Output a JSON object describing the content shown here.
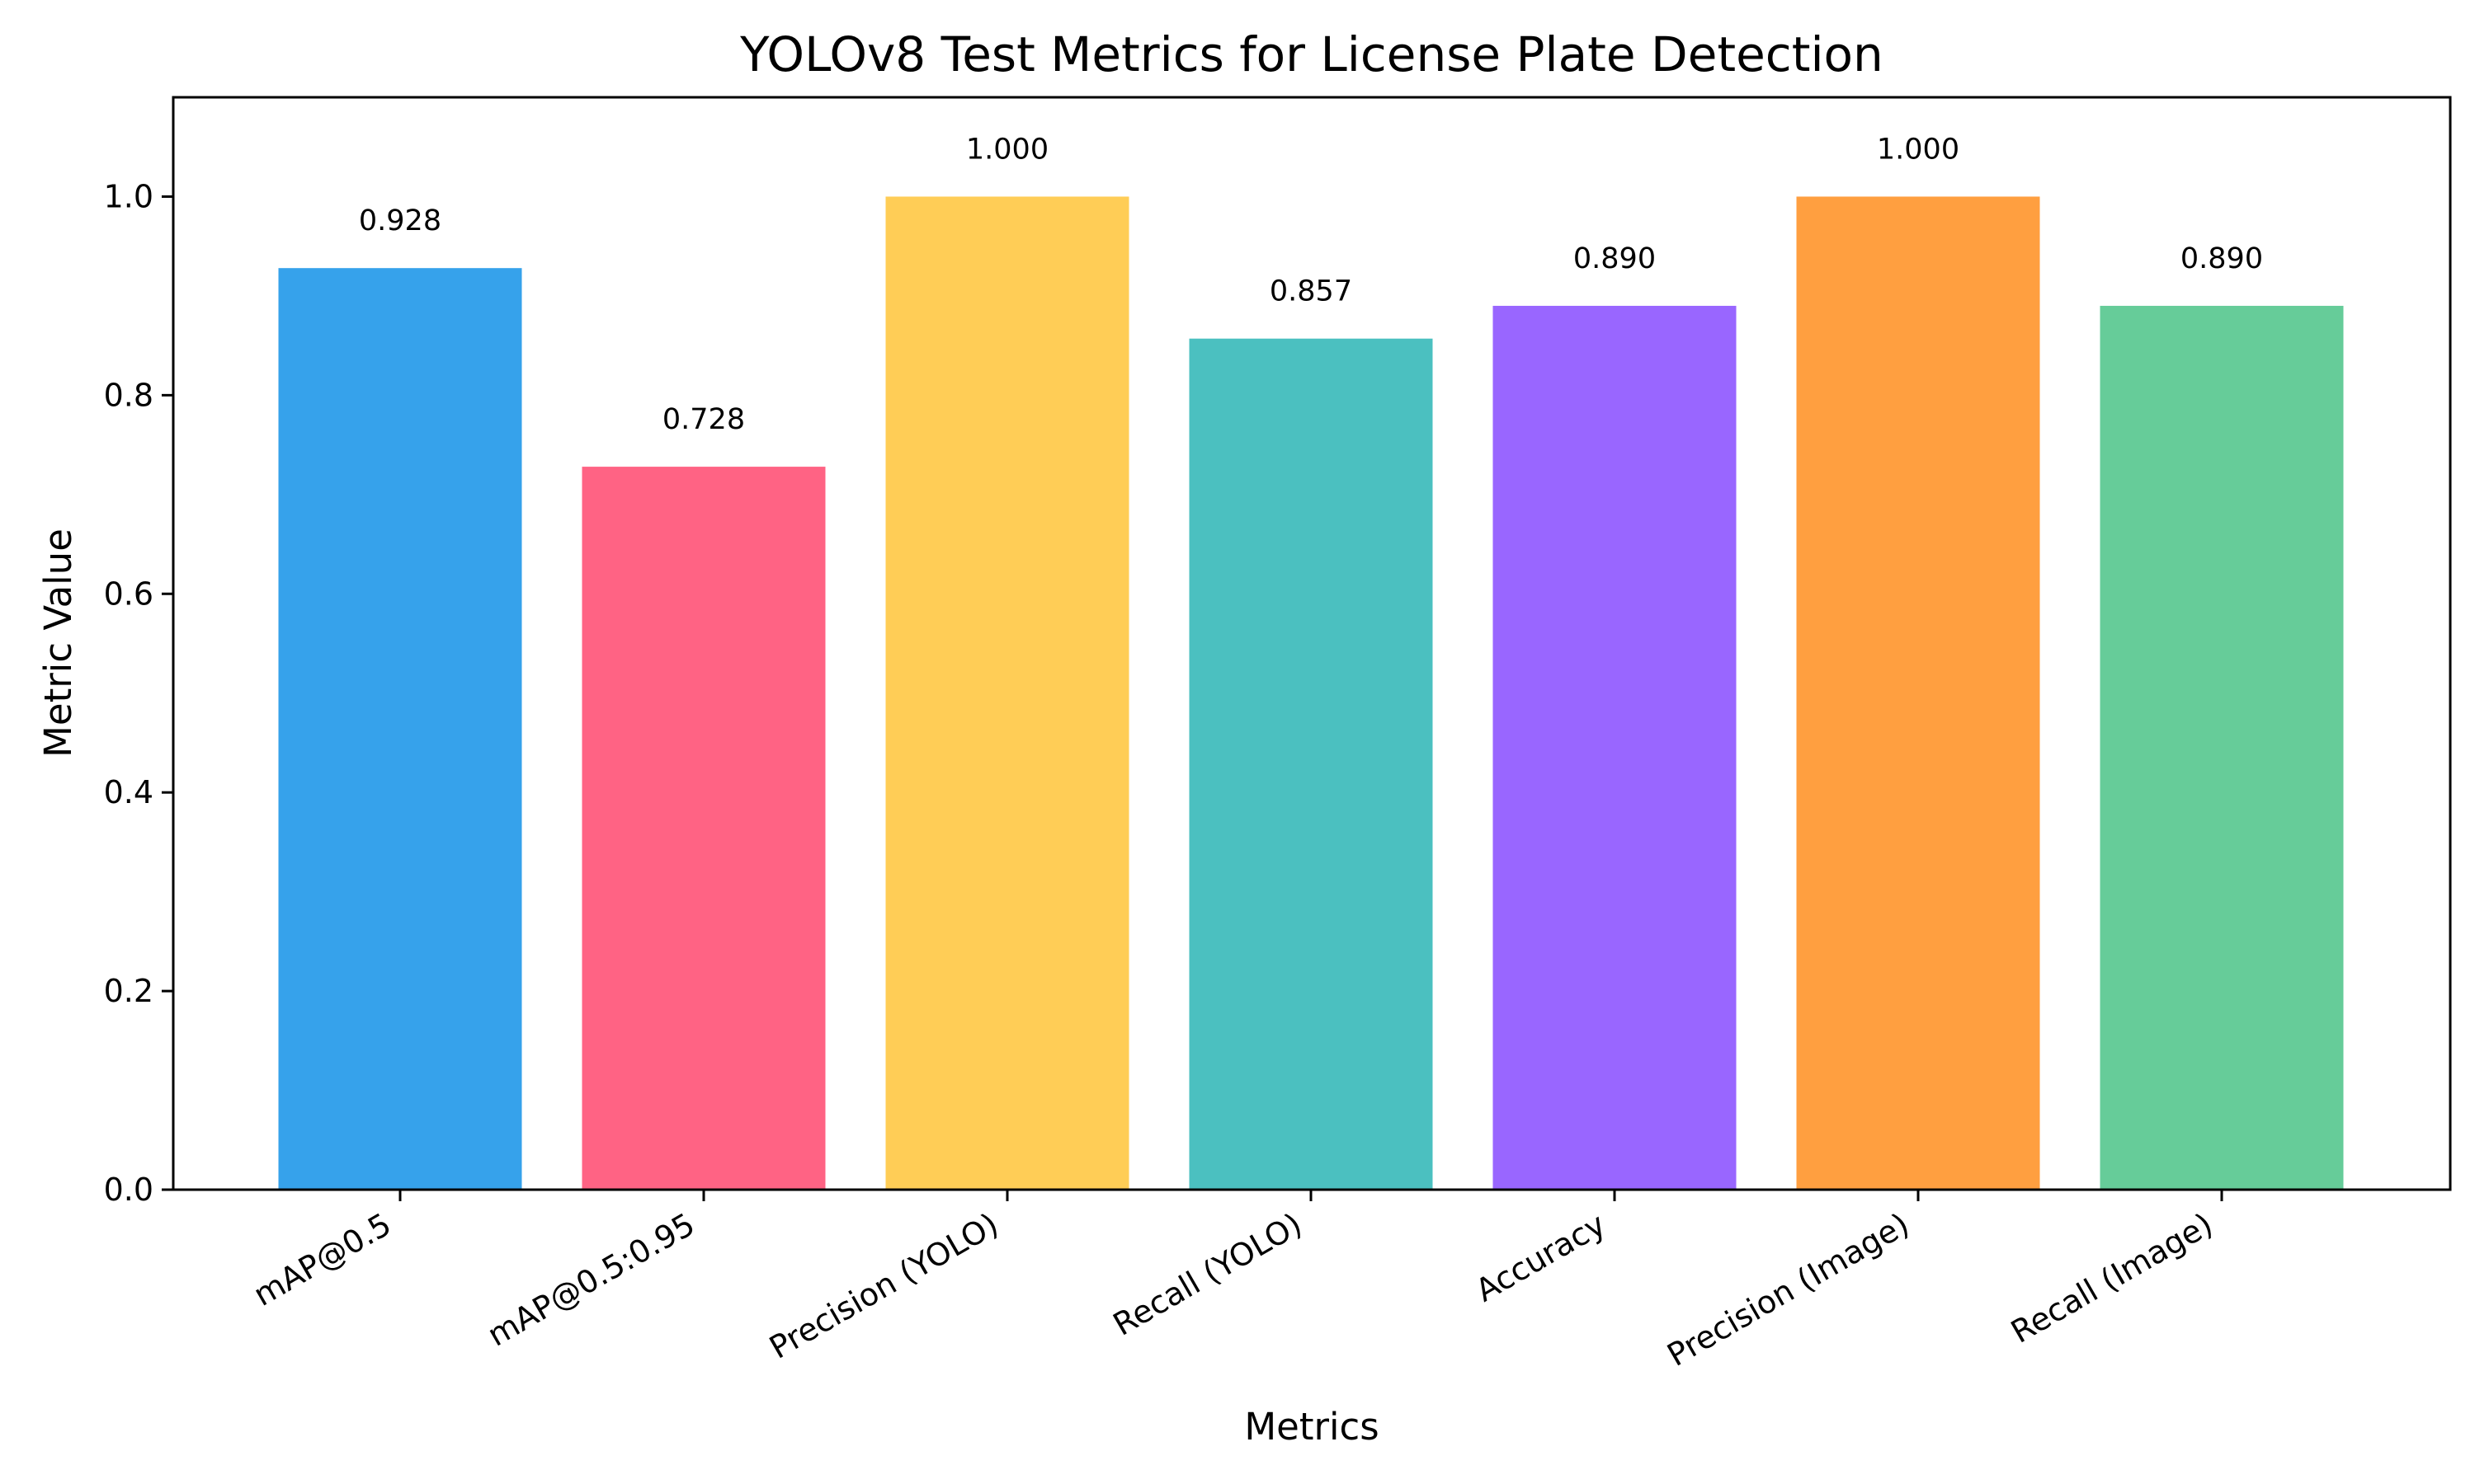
{
  "chart_data": {
    "type": "bar",
    "title": "YOLOv8 Test Metrics for License Plate Detection",
    "xlabel": "Metrics",
    "ylabel": "Metric Value",
    "categories": [
      "mAP@0.5",
      "mAP@0.5:0.95",
      "Precision (YOLO)",
      "Recall (YOLO)",
      "Accuracy",
      "Precision (Image)",
      "Recall (Image)"
    ],
    "values": [
      0.928,
      0.728,
      1.0,
      0.857,
      0.89,
      1.0,
      0.89
    ],
    "value_labels": [
      "0.928",
      "0.728",
      "1.000",
      "0.857",
      "0.890",
      "1.000",
      "0.890"
    ],
    "colors": [
      "#36A2EB",
      "#FF6384",
      "#FFCD56",
      "#4BC0C0",
      "#9966FF",
      "#FF9F40",
      "#66CC99"
    ],
    "ylim": [
      0,
      1.1
    ],
    "yticks": [
      0.0,
      0.2,
      0.4,
      0.6,
      0.8,
      1.0
    ],
    "ytick_labels": [
      "0.0",
      "0.2",
      "0.4",
      "0.6",
      "0.8",
      "1.0"
    ],
    "grid": false,
    "legend": "none"
  }
}
